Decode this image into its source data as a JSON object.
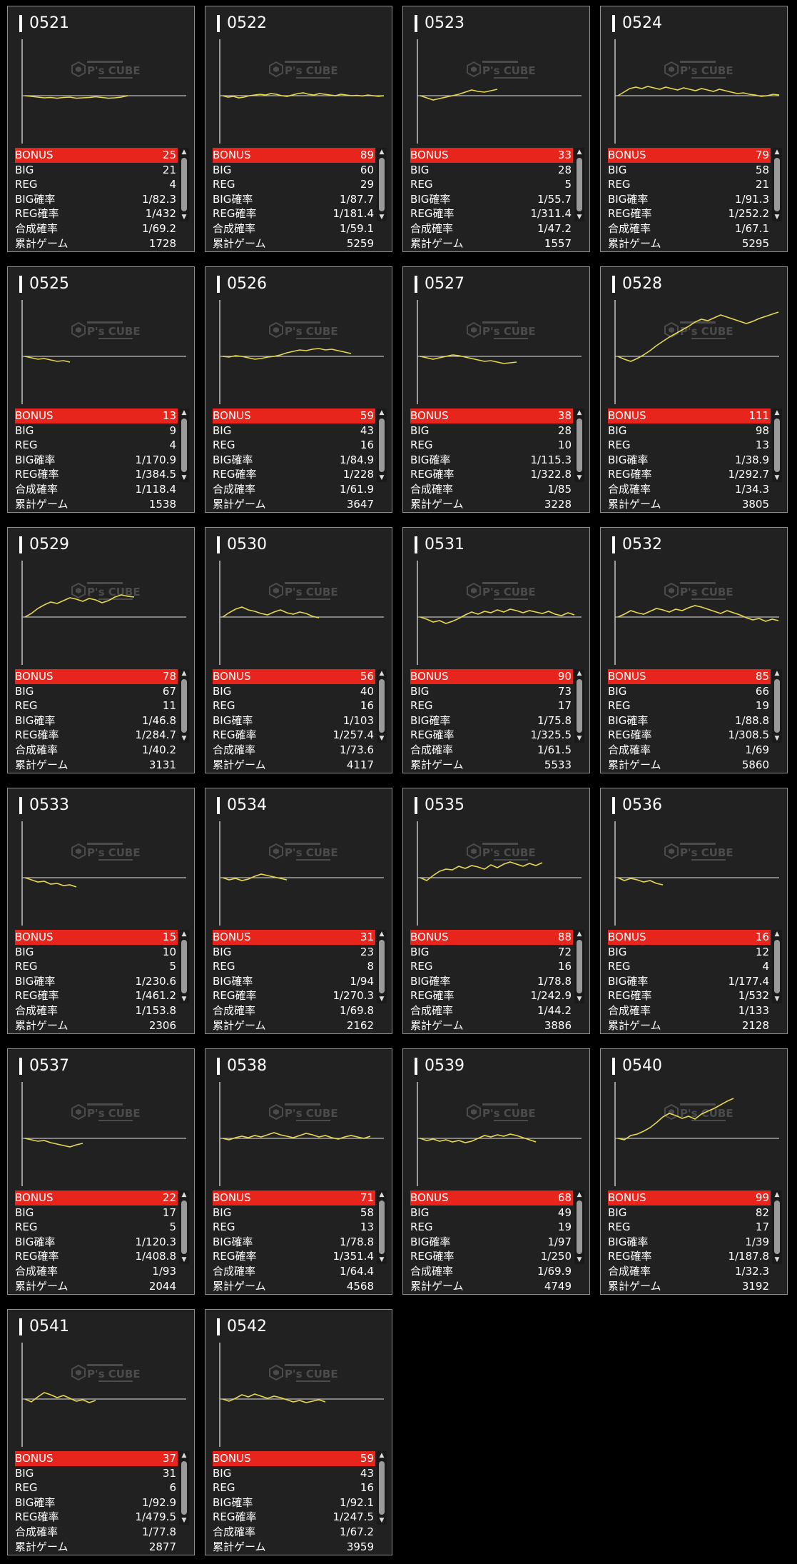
{
  "labels": {
    "bonus": "BONUS",
    "big": "BIG",
    "reg": "REG",
    "big_rate": "BIG確率",
    "reg_rate": "REG確率",
    "combined_rate": "合成確率",
    "total_games": "累計ゲーム"
  },
  "watermark": {
    "text": "P's CUBE",
    "icon": "cube-logo-icon"
  },
  "colors": {
    "bonus_bar": "#e8251d",
    "graph_line": "#e6d84a",
    "panel_bg": "#212121"
  },
  "machines": [
    {
      "id": "0521",
      "bonus": "25",
      "big": "21",
      "reg": "4",
      "big_rate": "1/82.3",
      "reg_rate": "1/432",
      "combined_rate": "1/69.2",
      "total_games": "1728",
      "graph": [
        0,
        -100,
        -200,
        -300,
        -250,
        -350,
        -250,
        -200,
        -350,
        -300,
        -250,
        -150,
        -250,
        -350,
        -300,
        -200,
        0
      ]
    },
    {
      "id": "0522",
      "bonus": "89",
      "big": "60",
      "reg": "29",
      "big_rate": "1/87.7",
      "reg_rate": "1/181.4",
      "combined_rate": "1/59.1",
      "total_games": "5259",
      "graph": [
        0,
        -200,
        -100,
        -300,
        -200,
        0,
        100,
        200,
        100,
        300,
        200,
        0,
        -100,
        100,
        300,
        400,
        200,
        100,
        300,
        200,
        100,
        0,
        200,
        100,
        0,
        50,
        -50,
        100,
        0,
        -100,
        0
      ]
    },
    {
      "id": "0523",
      "bonus": "33",
      "big": "28",
      "reg": "5",
      "big_rate": "1/55.7",
      "reg_rate": "1/311.4",
      "combined_rate": "1/47.2",
      "total_games": "1557",
      "graph": [
        0,
        -300,
        -600,
        -400,
        -200,
        0,
        200,
        500,
        800,
        600,
        500,
        700,
        900
      ]
    },
    {
      "id": "0524",
      "bonus": "79",
      "big": "58",
      "reg": "21",
      "big_rate": "1/91.3",
      "reg_rate": "1/252.2",
      "combined_rate": "1/67.1",
      "total_games": "5295",
      "graph": [
        0,
        500,
        1000,
        1200,
        1000,
        1300,
        1100,
        900,
        1200,
        1000,
        800,
        1100,
        900,
        700,
        1000,
        800,
        600,
        900,
        700,
        500,
        300,
        400,
        200,
        100,
        -100,
        0,
        200,
        100
      ]
    },
    {
      "id": "0525",
      "bonus": "13",
      "big": "9",
      "reg": "4",
      "big_rate": "1/170.9",
      "reg_rate": "1/384.5",
      "combined_rate": "1/118.4",
      "total_games": "1538",
      "graph": [
        0,
        -200,
        -400,
        -300,
        -500,
        -700,
        -600,
        -800
      ]
    },
    {
      "id": "0526",
      "bonus": "59",
      "big": "43",
      "reg": "16",
      "big_rate": "1/84.9",
      "reg_rate": "1/228",
      "combined_rate": "1/61.9",
      "total_games": "3647",
      "graph": [
        0,
        -100,
        100,
        0,
        -200,
        -400,
        -300,
        -100,
        0,
        200,
        500,
        700,
        900,
        800,
        1000,
        1100,
        900,
        1000,
        800,
        600,
        400
      ]
    },
    {
      "id": "0527",
      "bonus": "38",
      "big": "28",
      "reg": "10",
      "big_rate": "1/115.3",
      "reg_rate": "1/322.8",
      "combined_rate": "1/85",
      "total_games": "3228",
      "graph": [
        0,
        -200,
        -400,
        -200,
        0,
        200,
        100,
        -100,
        -300,
        -500,
        -700,
        -600,
        -800,
        -1000,
        -900,
        -800
      ]
    },
    {
      "id": "0528",
      "bonus": "111",
      "big": "98",
      "reg": "13",
      "big_rate": "1/38.9",
      "reg_rate": "1/292.7",
      "combined_rate": "1/34.3",
      "total_games": "3805",
      "graph": [
        0,
        -400,
        -700,
        -300,
        200,
        800,
        1500,
        2100,
        2700,
        3200,
        3700,
        4200,
        4800,
        5200,
        5000,
        5400,
        5800,
        5500,
        5200,
        4900,
        4600,
        4900,
        5300,
        5600,
        5900,
        6200
      ]
    },
    {
      "id": "0529",
      "bonus": "78",
      "big": "67",
      "reg": "11",
      "big_rate": "1/46.8",
      "reg_rate": "1/284.7",
      "combined_rate": "1/40.2",
      "total_games": "3131",
      "graph": [
        0,
        500,
        1200,
        1700,
        2100,
        1900,
        2300,
        2700,
        2500,
        2200,
        2600,
        2400,
        2000,
        2300,
        2800,
        3100,
        2900,
        2800
      ]
    },
    {
      "id": "0530",
      "bonus": "56",
      "big": "40",
      "reg": "16",
      "big_rate": "1/103",
      "reg_rate": "1/257.4",
      "combined_rate": "1/73.6",
      "total_games": "4117",
      "graph": [
        0,
        600,
        1100,
        1400,
        1000,
        800,
        500,
        300,
        700,
        1000,
        600,
        400,
        700,
        500,
        100,
        -100
      ]
    },
    {
      "id": "0531",
      "bonus": "90",
      "big": "73",
      "reg": "17",
      "big_rate": "1/75.8",
      "reg_rate": "1/325.5",
      "combined_rate": "1/61.5",
      "total_games": "5533",
      "graph": [
        0,
        -300,
        -700,
        -500,
        -900,
        -600,
        -200,
        300,
        700,
        400,
        800,
        600,
        1000,
        700,
        1100,
        900,
        600,
        900,
        700,
        500,
        800,
        400,
        200,
        600,
        300
      ]
    },
    {
      "id": "0532",
      "bonus": "85",
      "big": "66",
      "reg": "19",
      "big_rate": "1/88.8",
      "reg_rate": "1/308.5",
      "combined_rate": "1/69",
      "total_games": "5860",
      "graph": [
        0,
        400,
        900,
        600,
        400,
        800,
        1200,
        1000,
        700,
        1100,
        900,
        1300,
        1600,
        1400,
        1100,
        800,
        500,
        900,
        600,
        300,
        -100,
        -400,
        -200,
        -600,
        -300,
        -500
      ]
    },
    {
      "id": "0533",
      "bonus": "15",
      "big": "10",
      "reg": "5",
      "big_rate": "1/230.6",
      "reg_rate": "1/461.2",
      "combined_rate": "1/153.8",
      "total_games": "2306",
      "graph": [
        0,
        -300,
        -600,
        -500,
        -900,
        -800,
        -1100,
        -1000,
        -1300
      ]
    },
    {
      "id": "0534",
      "bonus": "31",
      "big": "23",
      "reg": "8",
      "big_rate": "1/94",
      "reg_rate": "1/270.3",
      "combined_rate": "1/69.8",
      "total_games": "2162",
      "graph": [
        0,
        -300,
        -100,
        -400,
        -200,
        200,
        500,
        300,
        100,
        -100,
        -300
      ]
    },
    {
      "id": "0535",
      "bonus": "88",
      "big": "72",
      "reg": "16",
      "big_rate": "1/78.8",
      "reg_rate": "1/242.9",
      "combined_rate": "1/44.2",
      "total_games": "3886",
      "graph": [
        0,
        -400,
        300,
        900,
        1200,
        1100,
        1600,
        1300,
        1700,
        1500,
        1200,
        1800,
        1400,
        1900,
        2200,
        1900,
        1600,
        2000,
        1700,
        2100
      ]
    },
    {
      "id": "0536",
      "bonus": "16",
      "big": "12",
      "reg": "4",
      "big_rate": "1/177.4",
      "reg_rate": "1/532",
      "combined_rate": "1/133",
      "total_games": "2128",
      "graph": [
        0,
        -400,
        -100,
        -300,
        -600,
        -400,
        -800,
        -1000
      ]
    },
    {
      "id": "0537",
      "bonus": "22",
      "big": "17",
      "reg": "5",
      "big_rate": "1/120.3",
      "reg_rate": "1/408.8",
      "combined_rate": "1/93",
      "total_games": "2044",
      "graph": [
        0,
        -200,
        -400,
        -300,
        -600,
        -800,
        -1000,
        -1200,
        -900,
        -700
      ]
    },
    {
      "id": "0538",
      "bonus": "71",
      "big": "58",
      "reg": "13",
      "big_rate": "1/78.8",
      "reg_rate": "1/351.4",
      "combined_rate": "1/64.4",
      "total_games": "4568",
      "graph": [
        0,
        -200,
        100,
        300,
        100,
        400,
        200,
        500,
        800,
        500,
        300,
        100,
        400,
        700,
        500,
        200,
        400,
        100,
        -100,
        200,
        400,
        200,
        0,
        300
      ]
    },
    {
      "id": "0539",
      "bonus": "68",
      "big": "49",
      "reg": "19",
      "big_rate": "1/97",
      "reg_rate": "1/250",
      "combined_rate": "1/69.9",
      "total_games": "4749",
      "graph": [
        0,
        -300,
        -100,
        -400,
        -200,
        -500,
        -300,
        -600,
        -400,
        0,
        400,
        200,
        500,
        300,
        600,
        400,
        100,
        -200,
        -500
      ]
    },
    {
      "id": "0540",
      "bonus": "99",
      "big": "82",
      "reg": "17",
      "big_rate": "1/39",
      "reg_rate": "1/187.8",
      "combined_rate": "1/32.3",
      "total_games": "3192",
      "graph": [
        0,
        -200,
        400,
        600,
        1000,
        1500,
        2200,
        3000,
        3500,
        3200,
        2800,
        3100,
        2700,
        3400,
        3800,
        4200,
        4700,
        5200,
        5600
      ]
    },
    {
      "id": "0541",
      "bonus": "37",
      "big": "31",
      "reg": "6",
      "big_rate": "1/92.9",
      "reg_rate": "1/479.5",
      "combined_rate": "1/77.8",
      "total_games": "2877",
      "graph": [
        0,
        -400,
        300,
        900,
        600,
        200,
        500,
        100,
        -300,
        -100,
        -500,
        -200
      ]
    },
    {
      "id": "0542",
      "bonus": "59",
      "big": "43",
      "reg": "16",
      "big_rate": "1/92.1",
      "reg_rate": "1/247.5",
      "combined_rate": "1/67.2",
      "total_games": "3959",
      "graph": [
        0,
        -300,
        100,
        600,
        300,
        700,
        400,
        100,
        400,
        200,
        -100,
        -400,
        -200,
        -500,
        -300,
        -100,
        -400
      ]
    }
  ]
}
